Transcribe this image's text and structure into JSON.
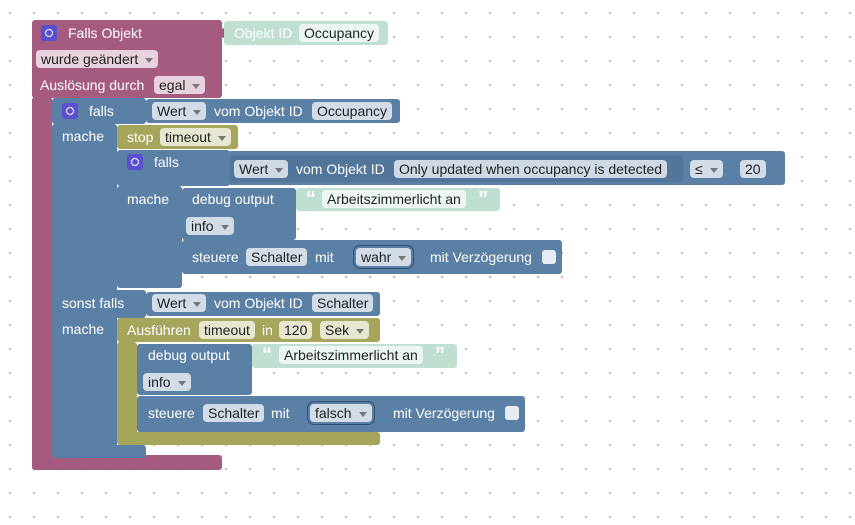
{
  "trigger": {
    "title": "Falls Objekt",
    "object_label": "Objekt ID",
    "object_id": "Occupancy",
    "event": "wurde geändert",
    "trigger_label": "Auslösung durch",
    "trigger_value": "egal"
  },
  "if_block": {
    "label": "falls",
    "field": "Wert",
    "object_label": "vom Objekt ID",
    "object_id": "Occupancy",
    "do_label": "mache"
  },
  "stop": {
    "label": "stop",
    "value": "timeout"
  },
  "inner_if": {
    "label": "falls",
    "field": "Wert",
    "object_label": "vom Objekt ID",
    "object_id": "Only updated when occupancy is detected",
    "operator": "≤",
    "number": 20,
    "do_label": "mache"
  },
  "debug_1": {
    "label": "debug output",
    "open_quote": "“",
    "text": "Arbeitszimmerlicht an",
    "close_quote": "”",
    "level": "info"
  },
  "control_1": {
    "label": "steuere",
    "target": "Schalter",
    "with_label": "mit",
    "value": "wahr",
    "delay_label": "mit Verzögerung"
  },
  "else_if": {
    "label": "sonst falls",
    "field": "Wert",
    "object_label": "vom Objekt ID",
    "object_id": "Schalter",
    "do_label": "mache"
  },
  "timeout": {
    "label": "Ausführen",
    "name": "timeout",
    "in_label": "in",
    "duration": 120,
    "unit": "Sek"
  },
  "debug_2": {
    "label": "debug output",
    "open_quote": "“",
    "text": "Arbeitszimmerlicht an",
    "close_quote": "”",
    "level": "info"
  },
  "control_2": {
    "label": "steuere",
    "target": "Schalter",
    "with_label": "mit",
    "value": "falsch",
    "delay_label": "mit Verzögerung"
  }
}
